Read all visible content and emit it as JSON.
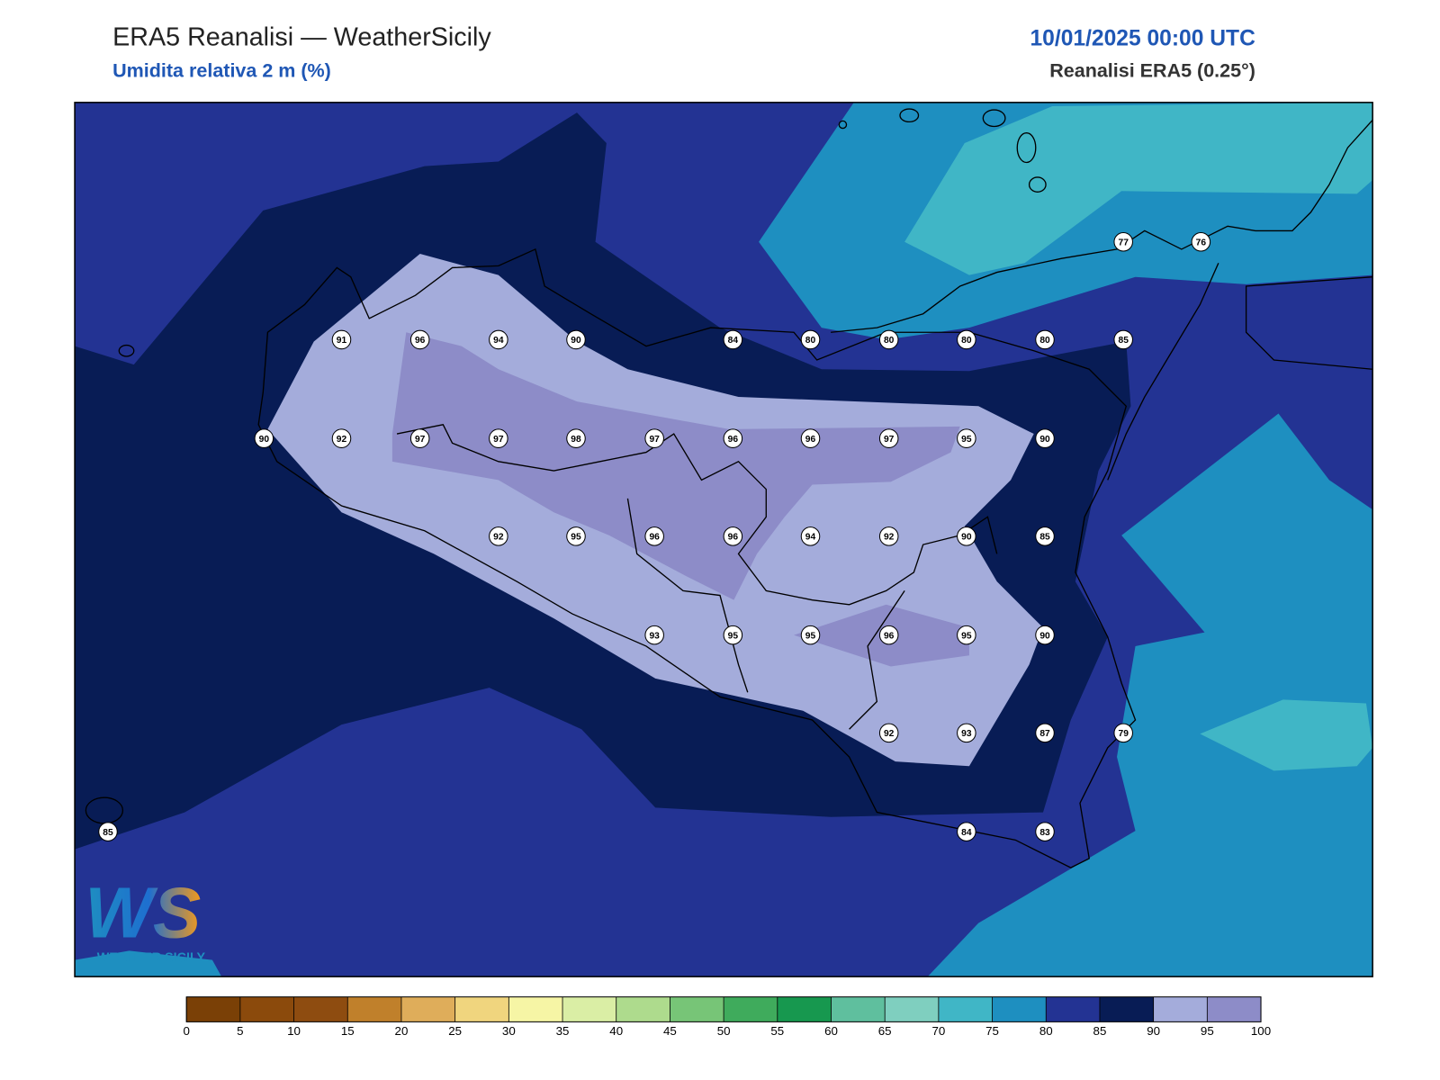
{
  "header": {
    "title": "ERA5 Reanalisi — WeatherSicily",
    "subtitle": "Umidita relativa 2 m (%)",
    "date": "10/01/2025 00:00 UTC",
    "source": "Reanalisi ERA5 (0.25°)"
  },
  "stations": [
    91,
    96,
    94,
    90,
    84,
    80,
    80,
    80,
    80,
    85,
    77,
    76,
    90,
    92,
    97,
    97,
    98,
    97,
    96,
    96,
    97,
    95,
    90,
    92,
    95,
    96,
    96,
    94,
    92,
    90,
    85,
    93,
    95,
    95,
    96,
    95,
    90,
    92,
    93,
    87,
    79,
    85,
    84,
    83
  ],
  "colorbar": {
    "ticks": [
      0,
      5,
      10,
      15,
      20,
      25,
      30,
      35,
      40,
      45,
      50,
      55,
      60,
      65,
      70,
      75,
      80,
      85,
      90,
      95,
      100
    ],
    "colors": [
      "#7a4006",
      "#8b4a0c",
      "#8e4c10",
      "#c0802b",
      "#dfad5a",
      "#f0d57e",
      "#f6f5a5",
      "#daeea5",
      "#aedb8d",
      "#77c577",
      "#3fab5c",
      "#17984f",
      "#5fbf9e",
      "#7fcfbf",
      "#40b6c6",
      "#1e8fc0",
      "#233393",
      "#081c55",
      "#a4acdb",
      "#8d8cc8"
    ]
  },
  "logo": {
    "mark": "WS",
    "text": "WEATHER SICILY"
  }
}
